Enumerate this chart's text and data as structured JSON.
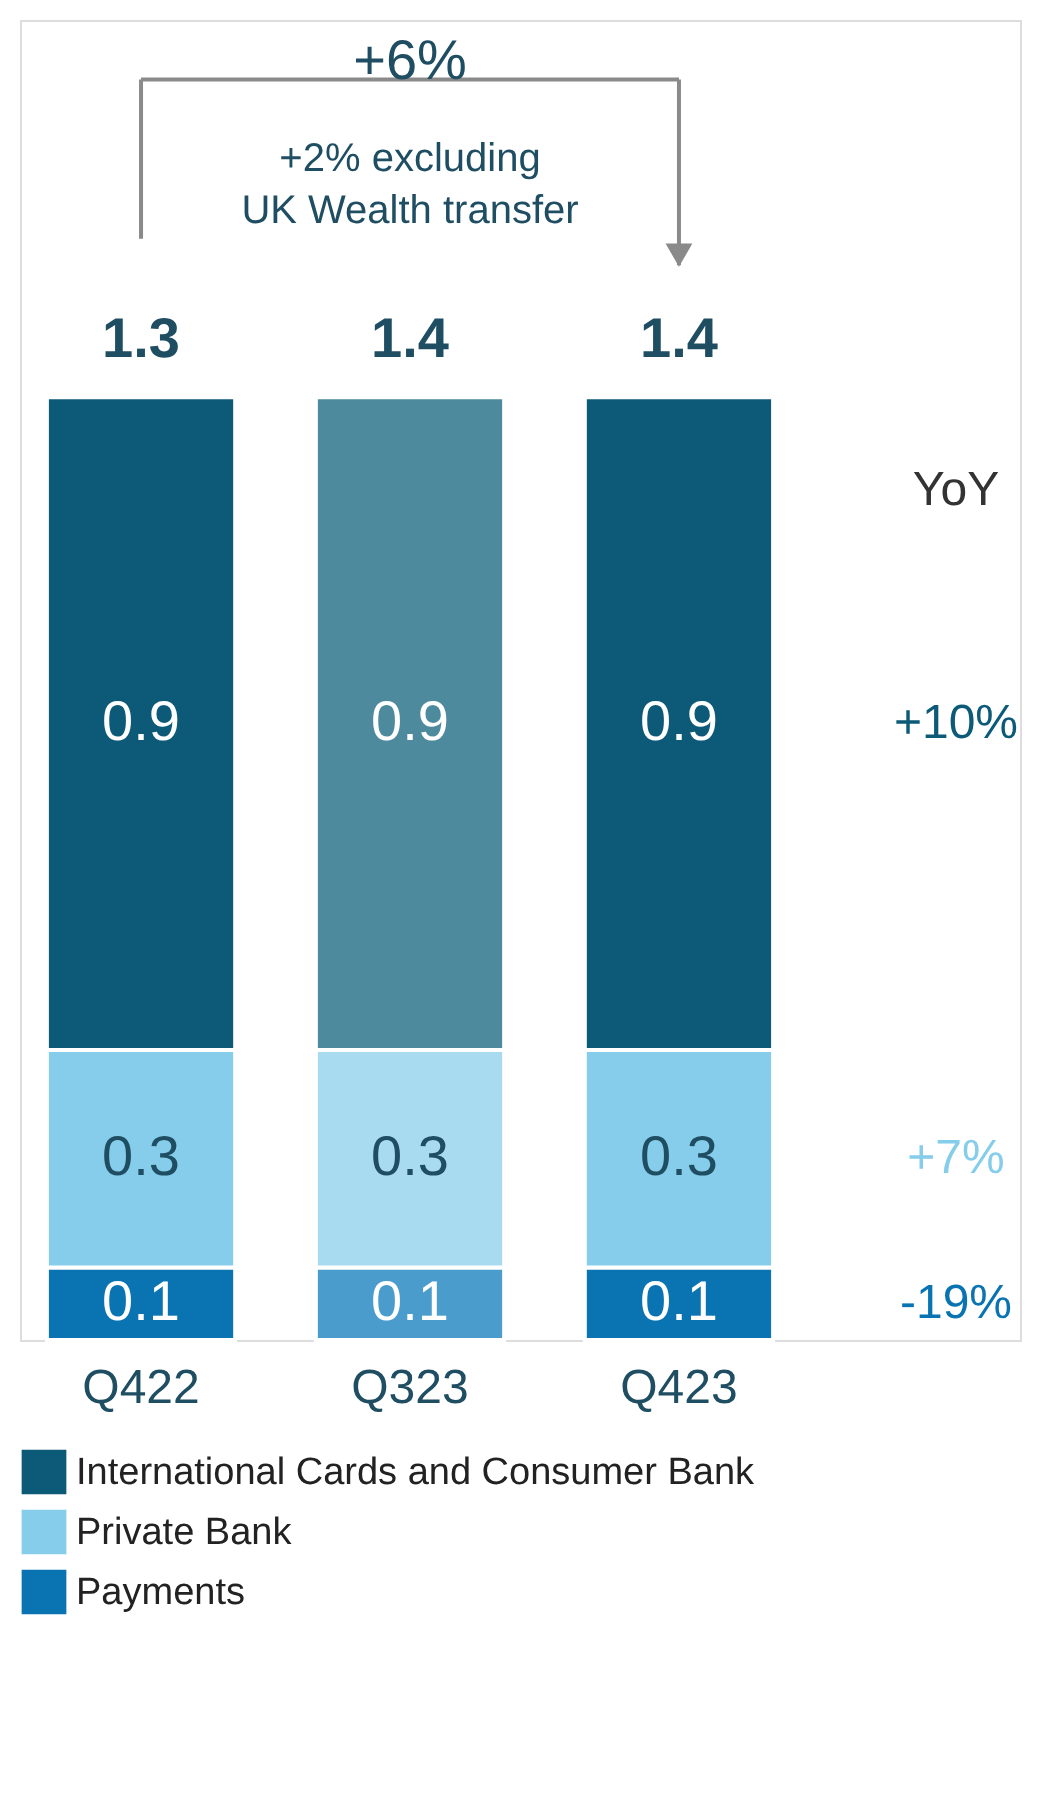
{
  "chart_data": {
    "type": "bar",
    "stacked": true,
    "categories": [
      "Q422",
      "Q323",
      "Q423"
    ],
    "series": [
      {
        "name": "Payments",
        "color": "#0a73b2",
        "colors": [
          "#0a73b2",
          "#4a9ccc",
          "#0a73b2"
        ],
        "values": [
          0.1,
          0.1,
          0.1
        ]
      },
      {
        "name": "Private Bank",
        "color": "#85cdea",
        "colors": [
          "#85cdea",
          "#a8daf0",
          "#85cdea"
        ],
        "values": [
          0.3,
          0.3,
          0.3
        ]
      },
      {
        "name": "International Cards and Consumer Bank",
        "color": "#0d5a78",
        "colors": [
          "#0d5a78",
          "#4d8a9e",
          "#0d5a78"
        ],
        "values": [
          0.9,
          0.9,
          0.9
        ]
      }
    ],
    "data_labels": true,
    "totals": [
      "1.3",
      "1.4",
      "1.4"
    ],
    "annotations": [
      "+6%",
      "+2% excluding UK Wealth transfer",
      "YoY",
      "-19%",
      "+7%",
      "+10%"
    ],
    "legend": "bottom"
  }
}
